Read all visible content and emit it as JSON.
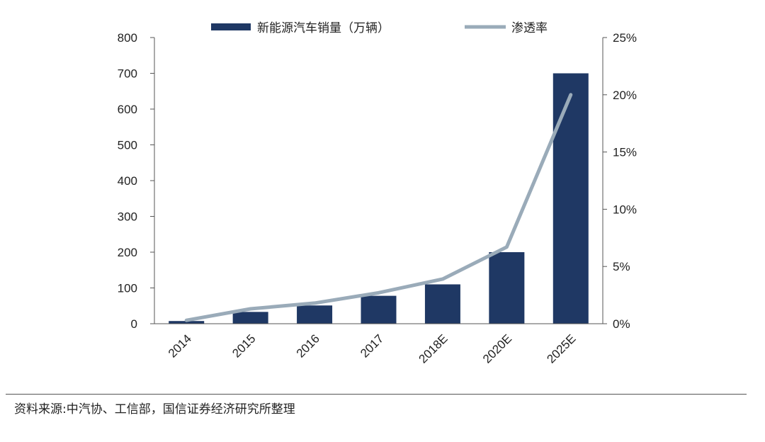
{
  "chart_data": {
    "type": "bar",
    "categories": [
      "2014",
      "2015",
      "2016",
      "2017",
      "2018E",
      "2020E",
      "2025E"
    ],
    "series": [
      {
        "name": "新能源汽车销量（万辆）",
        "type": "bar",
        "axis": "left",
        "values": [
          7.5,
          33,
          51,
          78,
          110,
          200,
          700
        ],
        "color": "#1f3864"
      },
      {
        "name": "渗透率",
        "type": "line",
        "axis": "right",
        "values": [
          0.3,
          1.3,
          1.8,
          2.7,
          3.9,
          6.7,
          20.0
        ],
        "color": "#9aabb9"
      }
    ],
    "left_axis": {
      "ylim": [
        0,
        800
      ],
      "ticks": [
        0,
        100,
        200,
        300,
        400,
        500,
        600,
        700,
        800
      ]
    },
    "right_axis": {
      "ylim": [
        0,
        25
      ],
      "ticks": [
        "0%",
        "5%",
        "10%",
        "15%",
        "20%",
        "25%"
      ]
    },
    "legend_position": "top",
    "grid": false
  },
  "source_note": "资料来源:中汽协、工信部，国信证券经济研究所整理"
}
